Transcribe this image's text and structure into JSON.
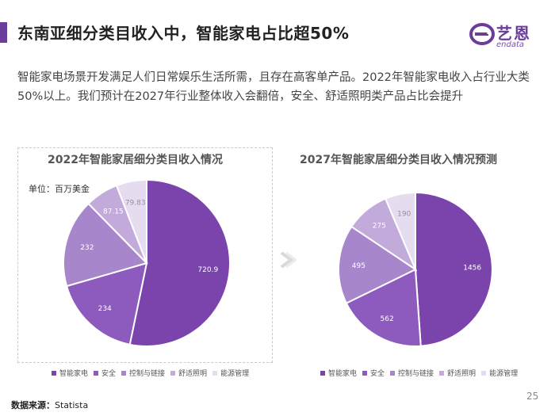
{
  "header": {
    "title": "东南亚细分类目收入中，智能家电占比超50%",
    "logo_cn": "艺恩",
    "logo_en": "endata"
  },
  "description": "智能家电场景开发满足人们日常娱乐生活所需，且存在高客单产品。2022年智能家电收入占行业大类50%以上。我们预计在2027年行业整体收入会翻倍，安全、舒适照明类产品占比会提升",
  "colors": {
    "accent": "#6a3d9a",
    "series": [
      "#7a44ac",
      "#8d5bbd",
      "#a786cb",
      "#c2aadb",
      "#e6dcf0"
    ]
  },
  "chart_data": [
    {
      "type": "pie",
      "title": "2022年智能家居细分类目收入情况",
      "unit": "单位：百万美金",
      "categories": [
        "智能家电",
        "安全",
        "控制与链接",
        "舒适照明",
        "能源管理"
      ],
      "values": [
        720.9,
        234,
        232,
        87.15,
        79.83
      ],
      "labels": [
        "720.9",
        "234",
        "232",
        "87.15",
        "79.83"
      ],
      "legend_position": "bottom"
    },
    {
      "type": "pie",
      "title": "2027年智能家居细分类目收入情况预测",
      "categories": [
        "智能家电",
        "安全",
        "控制与链接",
        "舒适照明",
        "能源管理"
      ],
      "values": [
        1456,
        562,
        495,
        275,
        190
      ],
      "labels": [
        "1456",
        "562",
        "495",
        "275",
        "190"
      ],
      "legend_position": "bottom"
    }
  ],
  "footer": {
    "source_label": "数据来源：",
    "source_value": "Statista",
    "page_number": "25"
  }
}
